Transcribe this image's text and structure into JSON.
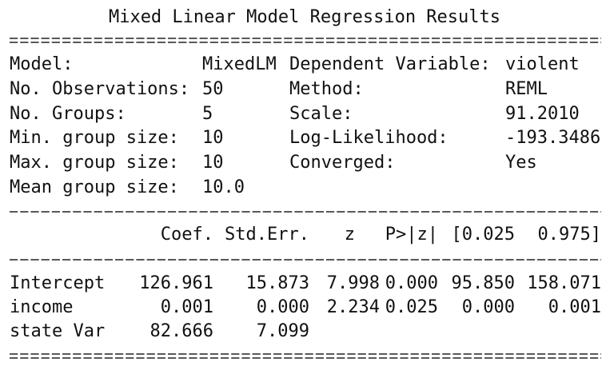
{
  "title": "Mixed Linear Model Regression Results",
  "info": {
    "rows": [
      [
        "Model:",
        "MixedLM",
        "Dependent Variable:",
        "violent"
      ],
      [
        "No. Observations:",
        "50",
        "Method:",
        "REML"
      ],
      [
        "No. Groups:",
        "5",
        "Scale:",
        "91.2010"
      ],
      [
        "Min. group size:",
        "10",
        "Log-Likelihood:",
        "-193.3486"
      ],
      [
        "Max. group size:",
        "10",
        "Converged:",
        "Yes"
      ],
      [
        "Mean group size:",
        "10.0"
      ]
    ]
  },
  "table": {
    "header": [
      "Coef.",
      "Std.Err.",
      "z",
      "P>|z|",
      "[0.025",
      "0.975]"
    ],
    "rows": [
      [
        "Intercept",
        "126.961",
        "15.873",
        "7.998",
        "0.000",
        "95.850",
        "158.071"
      ],
      [
        "income",
        "0.001",
        "0.000",
        "2.234",
        "0.025",
        "0.000",
        "0.001"
      ],
      [
        "state Var",
        "82.666",
        "7.099"
      ]
    ]
  }
}
